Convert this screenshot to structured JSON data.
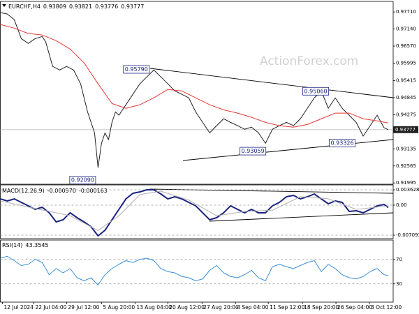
{
  "chart_data": [
    {
      "type": "line",
      "title": "EURCHF,H4",
      "ohlc": [
        0.93809,
        0.93821,
        0.93776,
        0.93777
      ],
      "watermark": "ActionForex.com",
      "last_price": 0.93777,
      "xlim": [
        0,
        56.3
      ],
      "ylim": [
        0.9193,
        0.9804
      ],
      "grid": false,
      "yticks": [
        {
          "value": 0.9771,
          "label": "0.97710"
        },
        {
          "value": 0.9714,
          "label": "0.97140"
        },
        {
          "value": 0.9657,
          "label": "0.96570"
        },
        {
          "value": 0.95995,
          "label": "0.95995"
        },
        {
          "value": 0.95415,
          "label": "0.95415"
        },
        {
          "value": 0.94845,
          "label": "0.94845"
        },
        {
          "value": 0.94275,
          "label": "0.94275"
        },
        {
          "value": 0.93135,
          "label": "0.93135"
        },
        {
          "value": 0.92565,
          "label": "0.92565"
        },
        {
          "value": 0.91995,
          "label": "0.91995"
        }
      ],
      "annotations": [
        {
          "label": "0.95790",
          "value": 0.9579,
          "x": 19.5
        },
        {
          "label": "0.95060",
          "value": 0.9506,
          "x": 45.2
        },
        {
          "label": "0.93059",
          "value": 0.93059,
          "x": 36.2
        },
        {
          "label": "0.93326",
          "value": 0.93326,
          "x": 49
        },
        {
          "label": "0.92090",
          "value": 0.9209,
          "x": 11.8
        }
      ],
      "series": [
        {
          "color": "#222222",
          "width": 1,
          "x": [
            0,
            1,
            2,
            3,
            4,
            5,
            6,
            6.5,
            7.5,
            8.5,
            9.5,
            10.5,
            11.5,
            12.5,
            13.5,
            14,
            14.5,
            15,
            15.5,
            16,
            16.5,
            17,
            18,
            19,
            20,
            21,
            22,
            23,
            24,
            25,
            26,
            27,
            28,
            29,
            30,
            31,
            32,
            33,
            34,
            35,
            36,
            37,
            38,
            39,
            40,
            41,
            42,
            43,
            44,
            45,
            46,
            47,
            48,
            49,
            50,
            51,
            52,
            53,
            54,
            55,
            55.6
          ],
          "values": [
            0.9769,
            0.9764,
            0.9745,
            0.9682,
            0.9666,
            0.9682,
            0.9689,
            0.9671,
            0.9589,
            0.9577,
            0.9589,
            0.9577,
            0.9531,
            0.9437,
            0.9367,
            0.9251,
            0.9332,
            0.9367,
            0.9344,
            0.9402,
            0.9437,
            0.9426,
            0.9461,
            0.9496,
            0.9531,
            0.9554,
            0.9577,
            0.9554,
            0.9531,
            0.9507,
            0.9496,
            0.9484,
            0.9437,
            0.9402,
            0.9367,
            0.9391,
            0.9414,
            0.9402,
            0.9391,
            0.9379,
            0.9386,
            0.9367,
            0.9332,
            0.9379,
            0.9391,
            0.9402,
            0.9391,
            0.9414,
            0.9449,
            0.9484,
            0.9507,
            0.9449,
            0.9484,
            0.9449,
            0.9426,
            0.9402,
            0.9356,
            0.9391,
            0.9426,
            0.9384,
            0.93777
          ]
        },
        {
          "color": "#e53935",
          "width": 1,
          "x": [
            0,
            2,
            4,
            6,
            8,
            10,
            12,
            14,
            16,
            18,
            20,
            22,
            24,
            26,
            28,
            30,
            32,
            34,
            36,
            38,
            40,
            42,
            44,
            46,
            48,
            50,
            52,
            54,
            55.6
          ],
          "values": [
            0.9729,
            0.9717,
            0.9699,
            0.9694,
            0.9675,
            0.9647,
            0.9601,
            0.9531,
            0.9465,
            0.9449,
            0.9461,
            0.9484,
            0.9512,
            0.9507,
            0.9484,
            0.9461,
            0.9444,
            0.9433,
            0.9419,
            0.9402,
            0.9391,
            0.9386,
            0.9395,
            0.9414,
            0.9433,
            0.9433,
            0.9414,
            0.9407,
            0.94
          ]
        }
      ]
    },
    {
      "type": "line",
      "title": "MACD(12,26,9)",
      "indicator_values": [
        {
          "value": -0.00057,
          "label": "-0.000570"
        },
        {
          "value": -0.000163,
          "label": "-0.000163"
        }
      ],
      "xlim": [
        0,
        56.3
      ],
      "ylim": [
        -0.00792,
        0.00462
      ],
      "grid": true,
      "yticks": [
        0.003628,
        {
          "value": 0,
          "label": "0.00"
        },
        -0.007093
      ],
      "series": [
        {
          "color": "#1a237e",
          "width": 2,
          "x": [
            0,
            1,
            2,
            3,
            4,
            5,
            6,
            7,
            8,
            9,
            10,
            11,
            12,
            13,
            14,
            15,
            16,
            17,
            18,
            19,
            20,
            21,
            22,
            23,
            24,
            25,
            26,
            27,
            28,
            29,
            30,
            31,
            32,
            33,
            34,
            35,
            36,
            37,
            38,
            39,
            40,
            41,
            42,
            43,
            44,
            45,
            46,
            47,
            48,
            49,
            50,
            51,
            52,
            53,
            54,
            55,
            55.6
          ],
          "values": [
            0.00148,
            0.00099,
            0.00148,
            0.00066,
            -0.00016,
            -0.00099,
            -0.00049,
            -0.00181,
            -0.00396,
            -0.00346,
            -0.00181,
            -0.00297,
            -0.00396,
            -0.00511,
            -0.00726,
            -0.00594,
            -0.00346,
            -0.00099,
            0.00148,
            0.0028,
            0.00313,
            0.00363,
            0.00363,
            0.00264,
            0.00148,
            0.00198,
            0.00148,
            0.00066,
            -0.00016,
            -0.00181,
            -0.00346,
            -0.00297,
            -0.00181,
            -0.00016,
            -0.00099,
            -0.00181,
            -0.00099,
            -0.00181,
            -0.00181,
            -0.00016,
            0.00066,
            0.00198,
            0.00231,
            0.00148,
            0.00198,
            0.00264,
            0.00148,
            0.00033,
            0.00099,
            0.00066,
            -0.00148,
            -0.00132,
            -0.00181,
            -0.00099,
            -0.00016,
            0.00016,
            -0.00057
          ]
        },
        {
          "color": "#b0b0b0",
          "width": 1,
          "x": [
            0,
            5,
            10,
            14,
            17,
            20,
            23,
            27,
            31,
            35,
            39,
            43,
            47,
            51,
            55.6
          ],
          "values": [
            0.001,
            -0.0008,
            -0.0025,
            -0.006,
            -0.0025,
            0.0025,
            0.0033,
            0.0012,
            -0.0025,
            -0.0015,
            -0.0012,
            0.002,
            0.0015,
            -0.001,
            -0.000163
          ]
        }
      ]
    },
    {
      "type": "line",
      "title": "RSI(14)",
      "indicator_values": [
        43.3545
      ],
      "xlim": [
        0,
        56.3
      ],
      "ylim": [
        0,
        100
      ],
      "grid": true,
      "yticks": [
        70,
        30
      ],
      "xticks": [
        {
          "value": 0.3,
          "label": "12 Jul 2024"
        },
        {
          "value": 4.8,
          "label": "22 Jul 04:00"
        },
        {
          "value": 9.5,
          "label": "29 Jul 12:00"
        },
        {
          "value": 14.5,
          "label": "5 Aug 20:00"
        },
        {
          "value": 19.3,
          "label": "13 Aug 04:00"
        },
        {
          "value": 24,
          "label": "20 Aug 12:00"
        },
        {
          "value": 28.9,
          "label": "27 Aug 20:00"
        },
        {
          "value": 33.7,
          "label": "4 Sep 04:00"
        },
        {
          "value": 38.4,
          "label": "11 Sep 12:00"
        },
        {
          "value": 43.3,
          "label": "18 Sep 20:00"
        },
        {
          "value": 48.1,
          "label": "26 Sep 04:00"
        },
        {
          "value": 52.9,
          "label": "3 Oct 12:00"
        }
      ],
      "series": [
        {
          "color": "#3d8fd6",
          "width": 1,
          "x": [
            0,
            1,
            2,
            3,
            4,
            5,
            6,
            7,
            8,
            9,
            10,
            11,
            12,
            13,
            14,
            15,
            16,
            17,
            18,
            19,
            20,
            21,
            22,
            23,
            24,
            25,
            26,
            27,
            28,
            29,
            30,
            31,
            32,
            33,
            34,
            35,
            36,
            37,
            38,
            39,
            40,
            41,
            42,
            43,
            44,
            45,
            46,
            47,
            48,
            49,
            50,
            51,
            52,
            53,
            54,
            55,
            55.6
          ],
          "values": [
            72,
            75,
            68,
            60,
            62,
            70,
            65,
            45,
            55,
            48,
            55,
            40,
            35,
            40,
            28,
            45,
            55,
            62,
            68,
            65,
            70,
            72,
            68,
            55,
            50,
            48,
            42,
            40,
            35,
            38,
            52,
            60,
            48,
            42,
            40,
            45,
            52,
            40,
            35,
            58,
            62,
            58,
            55,
            60,
            65,
            68,
            50,
            62,
            55,
            45,
            40,
            38,
            42,
            50,
            55,
            45,
            43.3545
          ]
        }
      ]
    }
  ]
}
